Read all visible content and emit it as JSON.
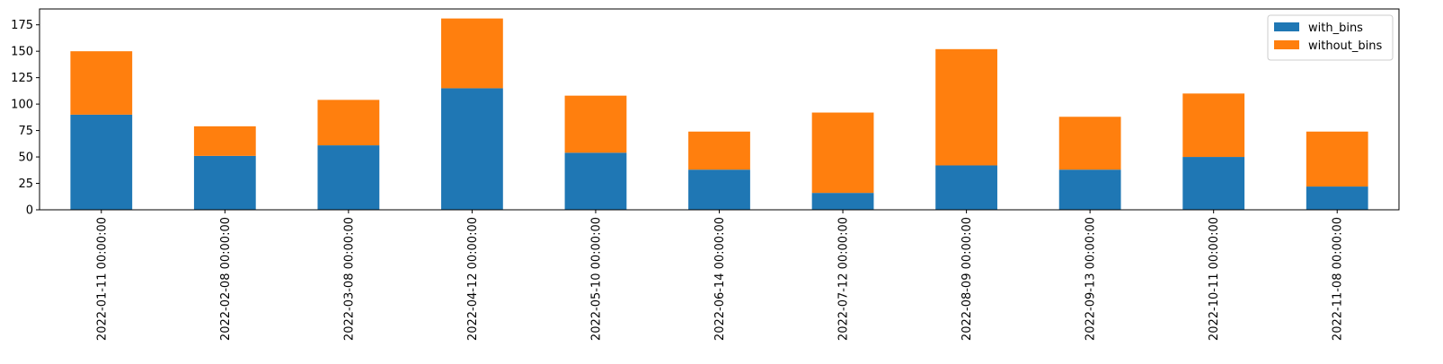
{
  "chart_data": {
    "type": "bar",
    "stacked": true,
    "categories": [
      "2022-01-11 00:00:00",
      "2022-02-08 00:00:00",
      "2022-03-08 00:00:00",
      "2022-04-12 00:00:00",
      "2022-05-10 00:00:00",
      "2022-06-14 00:00:00",
      "2022-07-12 00:00:00",
      "2022-08-09 00:00:00",
      "2022-09-13 00:00:00",
      "2022-10-11 00:00:00",
      "2022-11-08 00:00:00"
    ],
    "series": [
      {
        "name": "with_bins",
        "color": "#1f77b4",
        "values": [
          90,
          51,
          61,
          115,
          54,
          38,
          16,
          42,
          38,
          50,
          22
        ]
      },
      {
        "name": "without_bins",
        "color": "#ff7f0e",
        "values": [
          60,
          28,
          43,
          66,
          54,
          36,
          76,
          110,
          50,
          60,
          52
        ]
      }
    ],
    "title": "",
    "xlabel": "",
    "ylabel": "",
    "ylim": [
      0,
      190
    ],
    "yticks": [
      0,
      25,
      50,
      75,
      100,
      125,
      150,
      175
    ],
    "legend_position": "top-right",
    "grid": false
  }
}
